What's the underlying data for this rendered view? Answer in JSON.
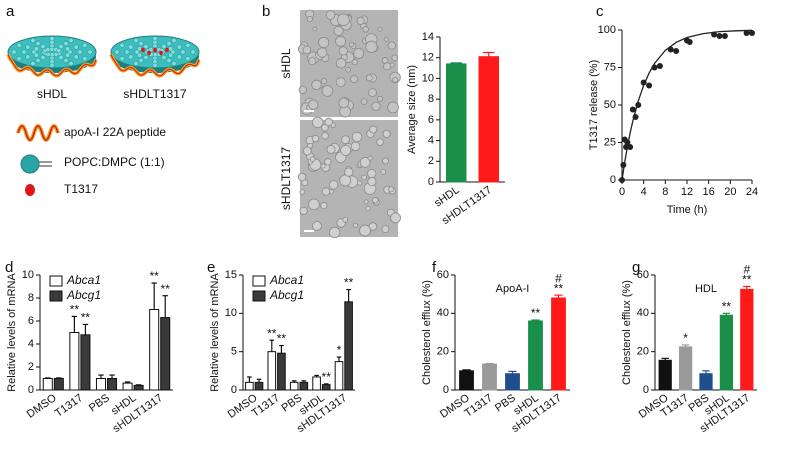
{
  "panel_labels": [
    "a",
    "b",
    "c",
    "d",
    "e",
    "f",
    "g"
  ],
  "illustration": {
    "particles": [
      "sHDL",
      "sHDLT1317"
    ],
    "legend": [
      "apoA-I 22A peptide",
      "POPC:DMPC (1:1)",
      "T1317"
    ]
  },
  "micrographs": {
    "labels": [
      "sHDL",
      "sHDLT1317"
    ]
  },
  "chart_data": [
    {
      "type": "bar",
      "ylabel": "Average size (nm)",
      "categories": [
        "sHDL",
        "sHDLT1317"
      ],
      "values": [
        11.4,
        12.1
      ],
      "errors": [
        0.1,
        0.4
      ],
      "colors": [
        "#1a8f4a",
        "#ff1a1a"
      ],
      "ylim": [
        0,
        14
      ],
      "yticks": [
        0,
        2,
        4,
        6,
        8,
        10,
        12,
        14
      ]
    },
    {
      "type": "scatter",
      "xlabel": "Time (h)",
      "ylabel": "T1317 release (%)",
      "series": [
        {
          "color": "#222222",
          "mode": "markers",
          "x": [
            0,
            0.25,
            0.5,
            0.75,
            1,
            1.5,
            2,
            2.5,
            3,
            4,
            5,
            6,
            7,
            9,
            10,
            12,
            12.5,
            17,
            18,
            19,
            23,
            24
          ],
          "values": [
            0,
            10,
            27,
            22,
            25,
            22,
            47,
            42,
            50,
            65,
            63,
            75,
            76,
            87,
            86,
            93,
            92,
            97,
            96,
            96,
            98,
            98
          ]
        },
        {
          "color": "#222222",
          "mode": "line",
          "x": [
            0,
            0.5,
            1,
            1.5,
            2,
            3,
            4,
            5,
            6,
            8,
            10,
            12,
            15,
            18,
            21,
            24
          ],
          "values": [
            0,
            11.8,
            22.1,
            31.3,
            39.3,
            52.8,
            63.2,
            71.3,
            77.7,
            86.5,
            91.8,
            95.0,
            97.6,
            98.9,
            99.5,
            99.8
          ]
        }
      ],
      "xlim": [
        0,
        24
      ],
      "xticks": [
        0,
        4,
        8,
        12,
        16,
        20,
        24
      ],
      "ylim": [
        0,
        100
      ],
      "yticks": [
        0,
        25,
        50,
        75,
        100
      ]
    },
    {
      "type": "bar",
      "ylabel": "Relative levels of mRNA",
      "categories": [
        "DMSO",
        "T1317",
        "PBS",
        "sHDL",
        "sHDLT1317"
      ],
      "series": [
        {
          "name": "Abca1",
          "color": "#ffffff",
          "values": [
            1.0,
            5.0,
            1.0,
            0.6,
            7.0
          ],
          "errors": [
            0.05,
            1.4,
            0.3,
            0.1,
            2.3
          ],
          "annotations": [
            null,
            [
              "**"
            ],
            null,
            null,
            [
              "**"
            ]
          ]
        },
        {
          "name": "Abcg1",
          "color": "#3a3a3a",
          "values": [
            1.0,
            4.8,
            1.0,
            0.4,
            6.3
          ],
          "errors": [
            0.05,
            0.9,
            0.3,
            0.05,
            1.9
          ],
          "annotations": [
            null,
            [
              "**"
            ],
            null,
            null,
            [
              "**"
            ]
          ]
        }
      ],
      "legend": "upper left",
      "ylim": [
        0,
        10
      ],
      "yticks": [
        0,
        2,
        4,
        6,
        8,
        10
      ]
    },
    {
      "type": "bar",
      "ylabel": "Relative levels of mRNA",
      "categories": [
        "DMSO",
        "T1317",
        "PBS",
        "sHDL",
        "sHDLT1317"
      ],
      "series": [
        {
          "name": "Abca1",
          "color": "#ffffff",
          "values": [
            1.0,
            5.0,
            1.0,
            1.7,
            3.7
          ],
          "errors": [
            0.7,
            1.5,
            0.2,
            0.2,
            0.6
          ],
          "annotations": [
            null,
            [
              "**"
            ],
            null,
            null,
            [
              "*"
            ]
          ]
        },
        {
          "name": "Abcg1",
          "color": "#3a3a3a",
          "values": [
            1.0,
            4.8,
            1.0,
            0.7,
            11.5
          ],
          "errors": [
            0.4,
            1.0,
            0.2,
            0.1,
            1.6
          ],
          "annotations": [
            null,
            [
              "**"
            ],
            null,
            [
              "**"
            ],
            [
              "**"
            ]
          ]
        }
      ],
      "legend": "upper left",
      "ylim": [
        0,
        15
      ],
      "yticks": [
        0,
        5,
        10,
        15
      ]
    },
    {
      "type": "bar",
      "title": "ApoA-I",
      "ylabel": "Cholesterol efflux (%)",
      "categories": [
        "DMSO",
        "T1317",
        "PBS",
        "sHDL",
        "sHDLT1317"
      ],
      "values": [
        10,
        13.5,
        8.5,
        36,
        48
      ],
      "errors": [
        0.5,
        0.3,
        1.2,
        0.5,
        1.5
      ],
      "colors": [
        "#111111",
        "#9a9a9a",
        "#1f4e8c",
        "#1a8f4a",
        "#ff1a1a"
      ],
      "annotations": [
        null,
        null,
        null,
        [
          "**"
        ],
        [
          "#",
          "**"
        ]
      ],
      "ylim": [
        0,
        60
      ],
      "yticks": [
        0,
        20,
        40,
        60
      ]
    },
    {
      "type": "bar",
      "title": "HDL",
      "ylabel": "Cholesterol efflux (%)",
      "categories": [
        "DMSO",
        "T1317",
        "PBS",
        "sHDL",
        "sHDLT1317"
      ],
      "values": [
        15.5,
        22.5,
        8.5,
        39,
        52.5
      ],
      "errors": [
        1.0,
        1.0,
        1.5,
        1.0,
        1.5
      ],
      "colors": [
        "#111111",
        "#9a9a9a",
        "#1f4e8c",
        "#1a8f4a",
        "#ff1a1a"
      ],
      "annotations": [
        null,
        [
          "*"
        ],
        null,
        [
          "**"
        ],
        [
          "#",
          "**"
        ]
      ],
      "ylim": [
        0,
        60
      ],
      "yticks": [
        0,
        20,
        40,
        60
      ]
    }
  ]
}
